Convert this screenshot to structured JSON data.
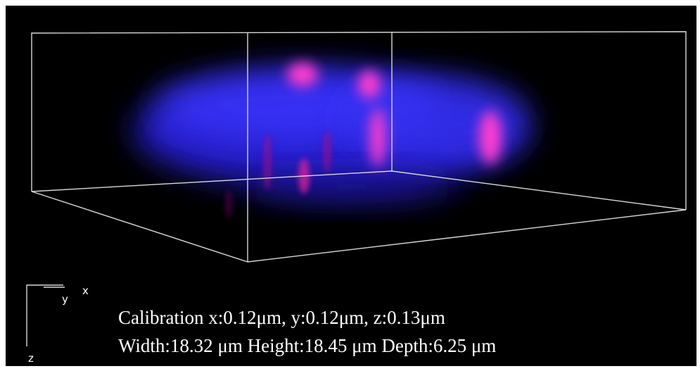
{
  "axes": {
    "y": "y",
    "x": "x",
    "z": "z"
  },
  "calibration": "Calibration x:0.12μm, y:0.12μm, z:0.13μm",
  "dimensions": "Width:18.32 μm Height:18.45 μm Depth:6.25 μm"
}
